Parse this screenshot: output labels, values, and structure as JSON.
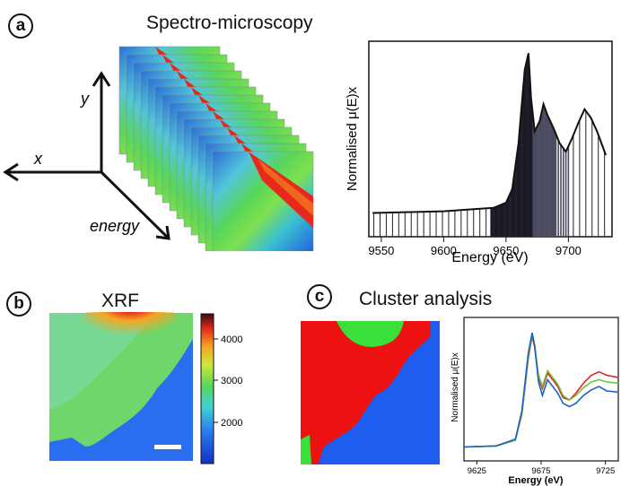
{
  "panel_a": {
    "badge": "a",
    "title": "Spectro-microscopy",
    "axes": {
      "x": "x",
      "y": "y",
      "energy": "energy"
    }
  },
  "panel_b": {
    "badge": "b",
    "title": "XRF",
    "colorbar_ticks": [
      "4000",
      "3000",
      "2000"
    ]
  },
  "panel_c": {
    "badge": "c",
    "title": "Cluster analysis"
  },
  "chart_data": [
    {
      "type": "area",
      "title": "",
      "xlabel": "Energy (eV)",
      "ylabel": "Normalised μ(E)x",
      "xlim": [
        9540,
        9735
      ],
      "ylim": [
        0,
        1.15
      ],
      "x_ticks": [
        "9550",
        "9600",
        "9650",
        "9700"
      ],
      "x": [
        9543,
        9600,
        9640,
        9650,
        9655,
        9660,
        9662,
        9665,
        9668,
        9670,
        9673,
        9677,
        9680,
        9683,
        9688,
        9693,
        9698,
        9703,
        9708,
        9713,
        9718,
        9723,
        9730
      ],
      "y": [
        0.14,
        0.15,
        0.17,
        0.2,
        0.28,
        0.55,
        0.72,
        0.98,
        1.08,
        0.82,
        0.62,
        0.68,
        0.78,
        0.72,
        0.64,
        0.55,
        0.5,
        0.58,
        0.67,
        0.75,
        0.7,
        0.62,
        0.48
      ]
    },
    {
      "type": "line",
      "title": "",
      "xlabel": "Energy (eV)",
      "ylabel": "Normalised μ(E)x",
      "xlim": [
        9615,
        9735
      ],
      "ylim": [
        0,
        1.2
      ],
      "x_ticks": [
        "9625",
        "9675",
        "9725"
      ],
      "x": [
        9615,
        9640,
        9655,
        9660,
        9665,
        9668,
        9670,
        9673,
        9676,
        9680,
        9684,
        9688,
        9692,
        9697,
        9702,
        9708,
        9714,
        9720,
        9726,
        9735
      ],
      "series": [
        {
          "name": "cluster-red",
          "values": [
            0.06,
            0.07,
            0.12,
            0.35,
            0.85,
            1.05,
            0.95,
            0.68,
            0.58,
            0.72,
            0.66,
            0.6,
            0.5,
            0.48,
            0.54,
            0.63,
            0.7,
            0.73,
            0.7,
            0.68
          ]
        },
        {
          "name": "cluster-green",
          "values": [
            0.06,
            0.07,
            0.12,
            0.35,
            0.87,
            1.07,
            0.97,
            0.7,
            0.6,
            0.74,
            0.68,
            0.62,
            0.52,
            0.48,
            0.52,
            0.59,
            0.64,
            0.66,
            0.64,
            0.63
          ]
        },
        {
          "name": "cluster-blue",
          "values": [
            0.06,
            0.07,
            0.13,
            0.38,
            0.9,
            1.08,
            0.96,
            0.64,
            0.52,
            0.66,
            0.6,
            0.54,
            0.45,
            0.42,
            0.45,
            0.52,
            0.57,
            0.6,
            0.56,
            0.55
          ]
        }
      ],
      "colors": [
        "#e02020",
        "#6fc43c",
        "#1a62c8"
      ]
    }
  ]
}
